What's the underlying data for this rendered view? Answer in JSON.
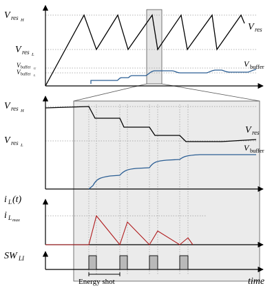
{
  "colors": {
    "axis": "#000000",
    "grid": "#9a9a9a",
    "vres": "#000000",
    "vbuffer": "#2a5d93",
    "il": "#b0191b",
    "pulse_fill": "#b9b9b9",
    "zoom_box": "#ebebeb",
    "zoom_stroke": "#555555"
  },
  "top_panel": {
    "y_labels": {
      "vres_h": {
        "main": "V",
        "sub1": "res",
        "sub2": "H"
      },
      "vres_l": {
        "main": "V",
        "sub1": "res",
        "sub2": "L"
      },
      "vbuffer_u": {
        "main": "V",
        "sub1": "buffer",
        "sub2": "U"
      },
      "vbuffer_l": {
        "main": "V",
        "sub1": "buffer",
        "sub2": "L"
      }
    },
    "curve_labels": {
      "vres": {
        "main": "V",
        "sub1": "res"
      },
      "vbuffer": {
        "main": "V",
        "sub1": "buffer"
      }
    }
  },
  "bottom_panel": {
    "y_labels": {
      "vres_h": {
        "main": "V",
        "sub1": "res",
        "sub2": "H"
      },
      "vres_l": {
        "main": "V",
        "sub1": "res",
        "sub2": "L"
      },
      "il_t": "i_L(t)",
      "il_t_parts": {
        "i": "i",
        "L": "L",
        "t": "(t)"
      },
      "il_max": {
        "main": "i",
        "sub1": "L",
        "sub2": "max"
      },
      "sw_li": {
        "main": "SW",
        "sub1": "LI"
      }
    },
    "curve_labels": {
      "vres": {
        "main": "V",
        "sub1": "res"
      },
      "vbuffer": {
        "main": "V",
        "sub1": "buffer"
      }
    },
    "x_label": "time",
    "annotation": "Energy shot"
  }
}
